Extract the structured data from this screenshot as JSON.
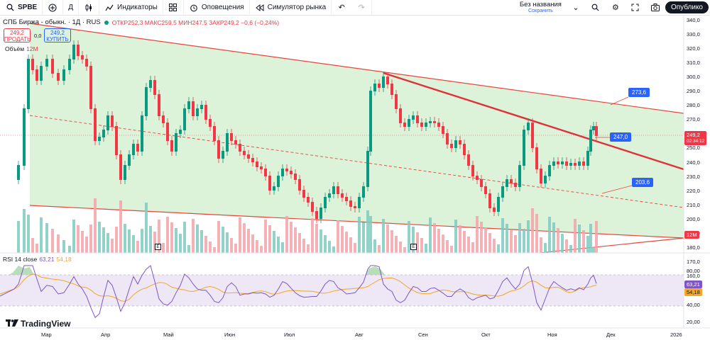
{
  "toolbar": {
    "symbol": "SPBE",
    "interval": "Д",
    "indicators_label": "Индикаторы",
    "alerts_label": "Оповещения",
    "replay_label": "Симулятор рынка",
    "layout_name": "Без названия",
    "layout_status": "Сохранить",
    "publish_label": "Опублико"
  },
  "legend": {
    "title": "СПБ Биржа - обыкн. · 1Д · RUS",
    "ohlc": "ОТКР252,3 МАКС259,5 МИН247,5 ЗАКР249,2 −0,6 (−0,24%)"
  },
  "trade": {
    "sell_price": "249,2",
    "sell_label": "ПРОДАТЬ",
    "spread": "0,0",
    "buy_price": "249,2",
    "buy_label": "КУПИТЬ"
  },
  "volume": {
    "label": "Объём",
    "value": "12M",
    "tag": "12M"
  },
  "rsi": {
    "label": "RSI 14 close",
    "value": "63,21",
    "ma": "54,18"
  },
  "price_axis": [
    "340,0",
    "330,0",
    "320,0",
    "310,0",
    "300,0",
    "290,0",
    "280,0",
    "270,0",
    "260,0",
    "250,0",
    "240,0",
    "230,0",
    "220,0",
    "210,0",
    "200,0",
    "190,0",
    "180,0",
    "170,0",
    "160,0"
  ],
  "rsi_axis": [
    "80,00",
    "40,00",
    "20,00"
  ],
  "current_price": {
    "value": "249,2",
    "countdown": "02:34:12"
  },
  "callouts": {
    "upper": "273,6",
    "middle": "247,0",
    "lower": "203,6"
  },
  "time_axis": [
    "Мар",
    "Апр",
    "Май",
    "Июн",
    "Июл",
    "Авг",
    "Сен",
    "Окт",
    "Ноя",
    "Дек",
    "2026"
  ],
  "brand": "TradingView",
  "colors": {
    "up": "#089981",
    "down": "#f23645",
    "channel_fill": "#d6f0d2",
    "trendline": "#e8453c",
    "rsi": "#7e57c2",
    "rsi_ma": "#f5a623",
    "accent": "#2962ff"
  }
}
